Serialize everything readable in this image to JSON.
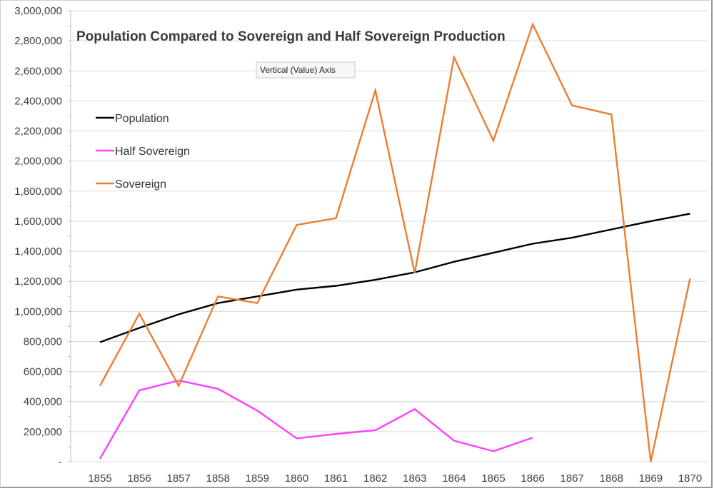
{
  "chart_data": {
    "type": "line",
    "title": "Population Compared to Sovereign and Half Sovereign Production",
    "xlabel": "",
    "ylabel": "",
    "ylim": [
      0,
      3000000
    ],
    "yticks": [
      0,
      200000,
      400000,
      600000,
      800000,
      1000000,
      1200000,
      1400000,
      1600000,
      1800000,
      2000000,
      2200000,
      2400000,
      2600000,
      2800000,
      3000000
    ],
    "ytick_labels": [
      "-",
      "200,000",
      "400,000",
      "600,000",
      "800,000",
      "1,000,000",
      "1,200,000",
      "1,400,000",
      "1,600,000",
      "1,800,000",
      "2,000,000",
      "2,200,000",
      "2,400,000",
      "2,600,000",
      "2,800,000",
      "3,000,000"
    ],
    "categories": [
      "1855",
      "1856",
      "1857",
      "1858",
      "1859",
      "1860",
      "1861",
      "1862",
      "1863",
      "1864",
      "1865",
      "1866",
      "1867",
      "1868",
      "1869",
      "1870"
    ],
    "grid": true,
    "legend_position": "left",
    "series": [
      {
        "name": "Population",
        "color": "#000000",
        "values": [
          795000,
          890000,
          980000,
          1055000,
          1100000,
          1145000,
          1170000,
          1210000,
          1260000,
          1330000,
          1390000,
          1450000,
          1490000,
          1545000,
          1600000,
          1650000
        ]
      },
      {
        "name": "Half Sovereign",
        "color": "#ff40ff",
        "values": [
          20000,
          475000,
          540000,
          485000,
          340000,
          155000,
          185000,
          210000,
          350000,
          140000,
          70000,
          160000,
          null,
          null,
          null,
          null
        ]
      },
      {
        "name": "Sovereign",
        "color": "#ed7d31",
        "values": [
          505000,
          985000,
          505000,
          1100000,
          1055000,
          1575000,
          1620000,
          2470000,
          1255000,
          2690000,
          2135000,
          2910000,
          2370000,
          2310000,
          0,
          1220000
        ]
      }
    ]
  },
  "tooltip": {
    "text": "Vertical (Value) Axis"
  }
}
